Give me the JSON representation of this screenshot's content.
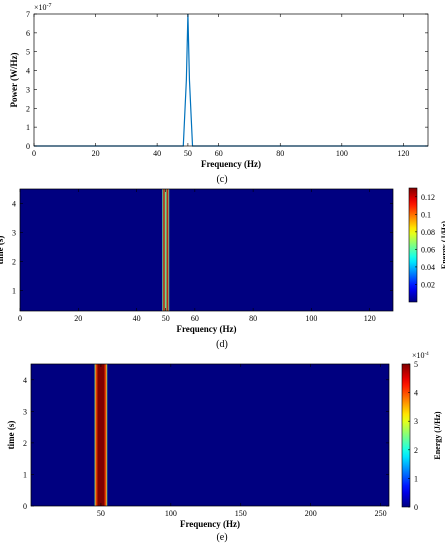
{
  "chart_data": [
    {
      "type": "line",
      "caption": "(c)",
      "xlabel": "Frequency (Hz)",
      "ylabel": "Power (W/Hz)",
      "exponent": "×10",
      "exponent_power": "-7",
      "xlim": [
        0,
        128
      ],
      "ylim": [
        0,
        7
      ],
      "xticks": [
        "0",
        "20",
        "40",
        "50",
        "60",
        "80",
        "100",
        "120"
      ],
      "yticks": [
        "0",
        "1",
        "2",
        "3",
        "4",
        "5",
        "6",
        "7"
      ],
      "series": [
        {
          "x": [
            0,
            48.5,
            49.5,
            50,
            50.5,
            51.5,
            128
          ],
          "y": [
            0,
            0,
            3.5,
            7,
            3.5,
            0,
            0
          ]
        }
      ],
      "line_color": "#0072bd"
    },
    {
      "type": "heatmap",
      "caption": "(d)",
      "xlabel": "Frequency (Hz)",
      "ylabel": "time (s)",
      "colorbar_label": "Energy (J/Hz)",
      "xlim": [
        0,
        128
      ],
      "ylim": [
        0.3,
        4.5
      ],
      "xticks": [
        "0",
        "20",
        "40",
        "50",
        "60",
        "80",
        "100",
        "120"
      ],
      "yticks": [
        "1",
        "2",
        "3",
        "4"
      ],
      "colorbar_ticks": [
        "0.02",
        "0.04",
        "0.06",
        "0.08",
        "0.1",
        "0.12"
      ],
      "colorbar_range": [
        0,
        0.13
      ],
      "background_value": 0,
      "band": {
        "center": 50,
        "profile": [
          [
            -1.2,
            0.06
          ],
          [
            -0.6,
            0.12
          ],
          [
            0,
            0.06
          ],
          [
            0.6,
            0.12
          ],
          [
            1.2,
            0.06
          ]
        ]
      }
    },
    {
      "type": "heatmap",
      "caption": "(e)",
      "xlabel": "Frequency (Hz)",
      "ylabel": "time (s)",
      "colorbar_label": "Energy (J/Hz)",
      "exponent": "×10",
      "exponent_power": "-4",
      "xlim": [
        0,
        256
      ],
      "ylim": [
        0,
        4.5
      ],
      "xticks": [
        "50",
        "100",
        "150",
        "200",
        "250"
      ],
      "yticks": [
        "0",
        "1",
        "2",
        "3",
        "4"
      ],
      "colorbar_ticks": [
        "0",
        "1",
        "2",
        "3",
        "4",
        "5"
      ],
      "colorbar_range": [
        0,
        5
      ],
      "background_value": 0,
      "band": {
        "center": 50,
        "profile": [
          [
            -4.5,
            2.5
          ],
          [
            -3.5,
            4
          ],
          [
            -2,
            5
          ],
          [
            0,
            5
          ],
          [
            2,
            5
          ],
          [
            3.5,
            4
          ],
          [
            4.5,
            2.5
          ]
        ]
      }
    }
  ]
}
